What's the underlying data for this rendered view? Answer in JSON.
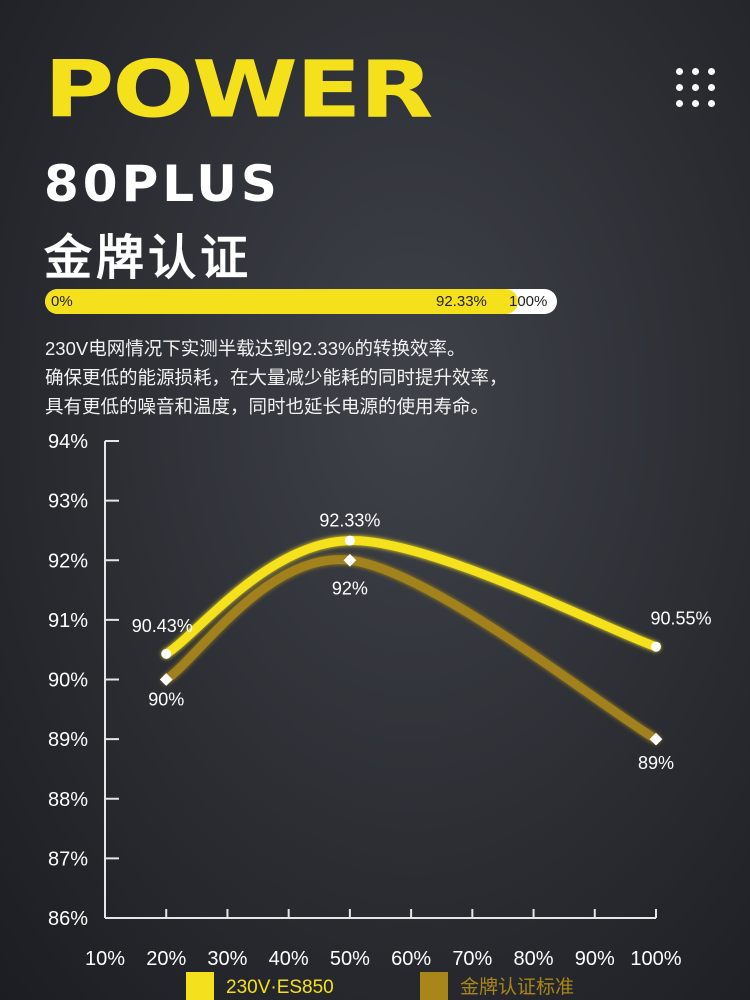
{
  "header": {
    "title": "POWER",
    "subtitle_line1": "80PLUS",
    "subtitle_line2": "金牌认证",
    "menu_icon": "nine-dot-grid-icon"
  },
  "efficiency_bar": {
    "start_label": "0%",
    "value_label": "92.33%",
    "end_label": "100%",
    "value": 92.33,
    "fill_color": "#f5e11b"
  },
  "description": [
    "230V电网情况下实测半载达到92.33%的转换效率。",
    "确保更低的能源损耗，在大量减少能耗的同时提升效率，",
    "具有更低的噪音和温度，同时也延长电源的使用寿命。"
  ],
  "chart_data": {
    "type": "line",
    "title": "",
    "xlabel": "",
    "ylabel": "",
    "x_ticks": [
      "10%",
      "20%",
      "30%",
      "40%",
      "50%",
      "60%",
      "70%",
      "80%",
      "90%",
      "100%"
    ],
    "y_ticks": [
      "94%",
      "93%",
      "92%",
      "91%",
      "90%",
      "89%",
      "88%",
      "87%",
      "86%"
    ],
    "xlim": [
      10,
      100
    ],
    "ylim": [
      86,
      94
    ],
    "legend_position": "bottom",
    "series": [
      {
        "name": "230V·ES850",
        "color": "#f5e11b",
        "marker": "circle",
        "points": [
          {
            "x": 20,
            "y": 90.43,
            "label": "90.43%"
          },
          {
            "x": 50,
            "y": 92.33,
            "label": "92.33%"
          },
          {
            "x": 100,
            "y": 90.55,
            "label": "90.55%"
          }
        ]
      },
      {
        "name": "金牌认证标准",
        "color": "#a8861a",
        "marker": "diamond",
        "points": [
          {
            "x": 20,
            "y": 90,
            "label": "90%"
          },
          {
            "x": 50,
            "y": 92,
            "label": "92%"
          },
          {
            "x": 100,
            "y": 89,
            "label": "89%"
          }
        ]
      }
    ]
  }
}
